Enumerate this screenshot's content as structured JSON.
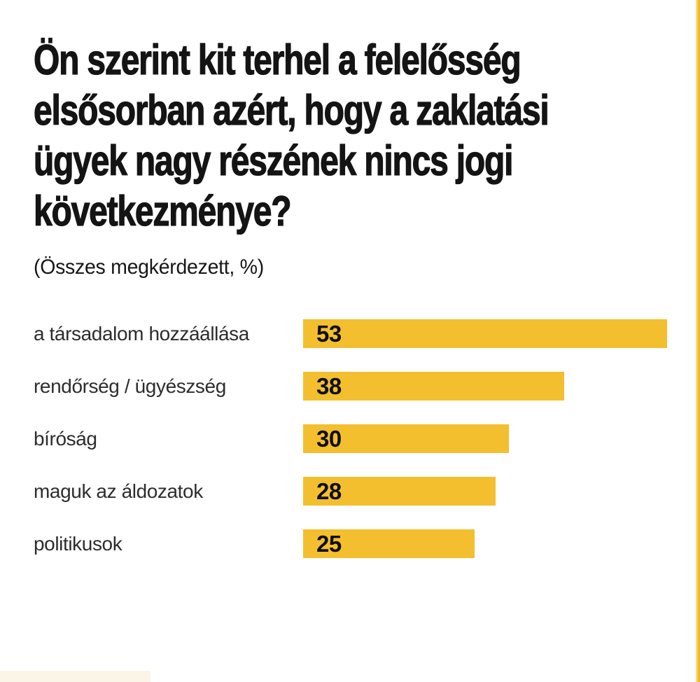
{
  "page": {
    "background": "#ffffff",
    "accent_color": "#f3bf2e",
    "bottom_strip_color": "#fbf5e7"
  },
  "chart": {
    "title_lines": [
      "Ön szerint kit terhel a felelősség",
      "elsősorban azért, hogy a zaklatási",
      "ügyek nagy részének nincs jogi",
      "következménye?"
    ],
    "subtitle": "(Összes megkérdezett, %)"
  },
  "chart_data": {
    "type": "bar",
    "orientation": "horizontal",
    "title": "Ön szerint kit terhel a felelősség elsősorban azért, hogy a zaklatási ügyek nagy részének nincs jogi következménye?",
    "subtitle": "(Összes megkérdezett, %)",
    "categories": [
      "a társadalom hozzáállása",
      "rendőrség / ügyészség",
      "bíróság",
      "maguk az áldozatok",
      "politikusok"
    ],
    "values": [
      53,
      38,
      30,
      28,
      25
    ],
    "unit": "%",
    "bar_color": "#f3bf2e",
    "value_label_position": "inside-left",
    "xlim": [
      0,
      56
    ],
    "grid": false,
    "legend": false
  }
}
